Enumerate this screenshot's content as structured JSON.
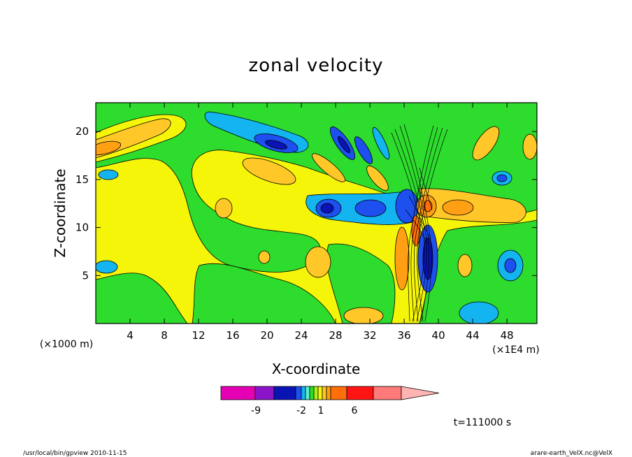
{
  "chart_data": {
    "type": "heatmap",
    "title": "zonal velocity",
    "xlabel": "X-coordinate",
    "ylabel": "Z-coordinate",
    "x_unit_left": "(×1000 m)",
    "x_unit_right": "(×1E4 m)",
    "xlim": [
      0,
      51.5
    ],
    "ylim": [
      0,
      23
    ],
    "x_ticks": [
      4,
      8,
      12,
      16,
      20,
      24,
      28,
      32,
      36,
      40,
      44,
      48
    ],
    "y_ticks": [
      5,
      10,
      15,
      20
    ],
    "colorbar": {
      "colors": [
        "#e600b4",
        "#8c14c8",
        "#0a14b4",
        "#1e50f0",
        "#14b4f0",
        "#5af0c8",
        "#2ddc2d",
        "#aaf014",
        "#f5f50a",
        "#ffc828",
        "#ffa014",
        "#ff6e0a",
        "#ff1414",
        "#ff7a78",
        "#ffb4b4"
      ],
      "tick_labels": [
        "-9",
        "-2",
        "1",
        "6"
      ]
    },
    "time_label": "t=111000 s"
  },
  "footer": {
    "left": "/usr/local/bin/gpview  2010-11-15",
    "right": "arare-earth_VelX.nc@VelX"
  }
}
